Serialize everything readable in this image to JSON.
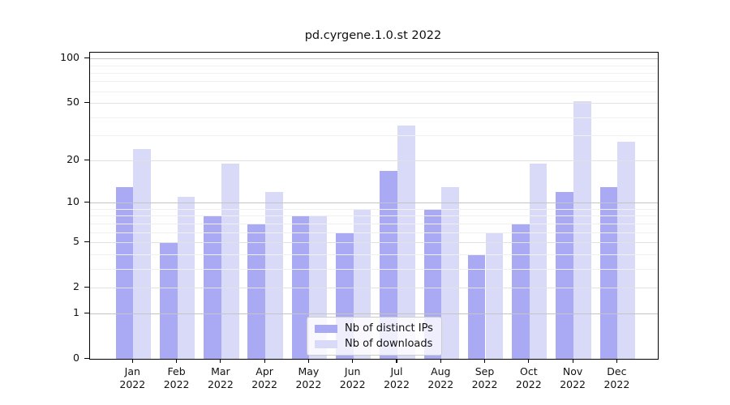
{
  "title": "pd.cyrgene.1.0.st 2022",
  "legend": {
    "items": [
      {
        "label": "Nb of distinct IPs"
      },
      {
        "label": "Nb of downloads"
      }
    ]
  },
  "colors": {
    "distinct_ips": "#aaaaf4",
    "downloads": "#d9d9f8",
    "grid_decade": "#c4c4c4",
    "grid_labeled": "#e2e2e2",
    "grid_minor": "#f0f0f0",
    "axis": "#000000"
  },
  "chart_data": {
    "type": "bar",
    "title": "pd.cyrgene.1.0.st 2022",
    "categories": [
      "Jan 2022",
      "Feb 2022",
      "Mar 2022",
      "Apr 2022",
      "May 2022",
      "Jun 2022",
      "Jul 2022",
      "Aug 2022",
      "Sep 2022",
      "Oct 2022",
      "Nov 2022",
      "Dec 2022"
    ],
    "series": [
      {
        "name": "Nb of distinct IPs",
        "color": "#aaaaf4",
        "values": [
          13,
          5,
          8,
          7,
          8,
          6,
          17,
          9,
          4,
          7,
          12,
          13
        ]
      },
      {
        "name": "Nb of downloads",
        "color": "#d9d9f8",
        "values": [
          24,
          11,
          19,
          12,
          8,
          9,
          35,
          13,
          6,
          19,
          51,
          27
        ]
      }
    ],
    "xlabel": "",
    "ylabel": "",
    "yscale": "log1p",
    "ylim": [
      0,
      110
    ],
    "yticks": [
      0,
      1,
      2,
      5,
      10,
      20,
      50,
      100
    ],
    "decade_gridlines": [
      1,
      10,
      100
    ],
    "minor_gridlines": [
      3,
      4,
      6,
      7,
      8,
      9,
      30,
      40,
      60,
      70,
      80,
      90
    ],
    "grid": true,
    "legend_position": "lower center"
  }
}
